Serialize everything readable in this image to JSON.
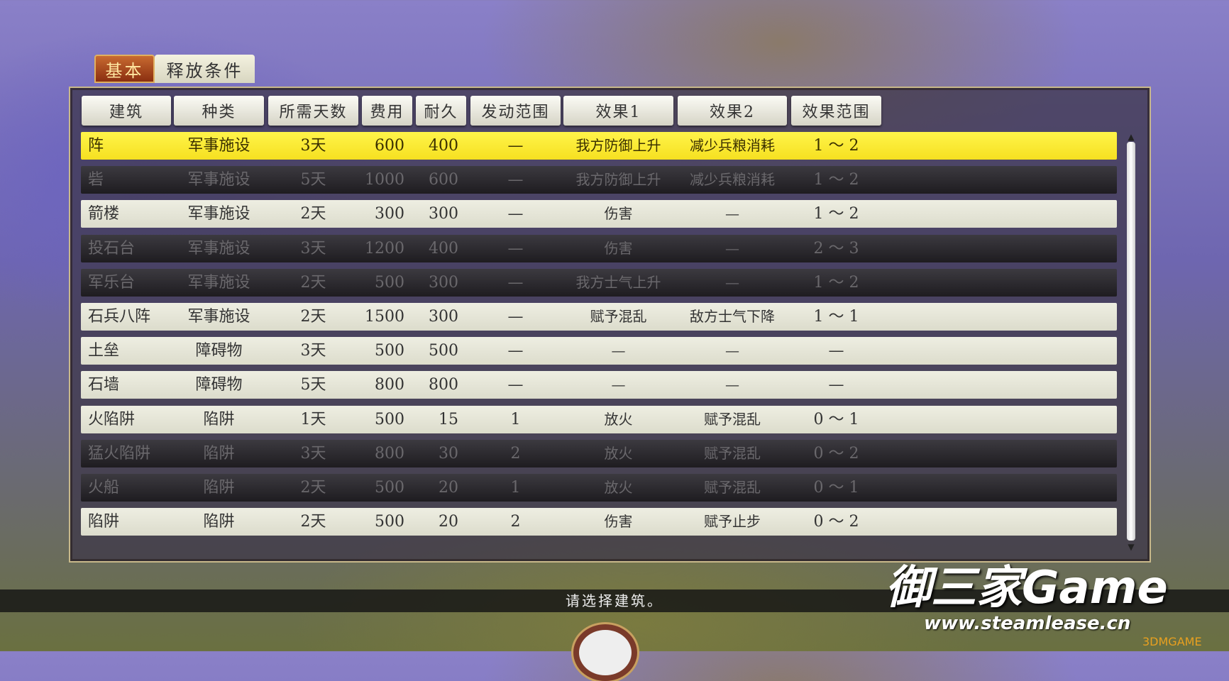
{
  "tabs": [
    {
      "label": "基本",
      "active": true
    },
    {
      "label": "释放条件",
      "active": false
    }
  ],
  "columns": [
    "建筑",
    "种类",
    "所需天数",
    "费用",
    "耐久",
    "发动范围",
    "效果1",
    "效果2",
    "效果范围"
  ],
  "rows": [
    {
      "state": "selected",
      "cells": [
        "阵",
        "军事施设",
        "3天",
        "600",
        "400",
        "—",
        "我方防御上升",
        "减少兵粮消耗",
        "1 ～ 2"
      ]
    },
    {
      "state": "disabled",
      "cells": [
        "砦",
        "军事施设",
        "5天",
        "1000",
        "600",
        "—",
        "我方防御上升",
        "减少兵粮消耗",
        "1 ～ 2"
      ]
    },
    {
      "state": "normal",
      "cells": [
        "箭楼",
        "军事施设",
        "2天",
        "300",
        "300",
        "—",
        "伤害",
        "—",
        "1 ～ 2"
      ]
    },
    {
      "state": "disabled",
      "cells": [
        "投石台",
        "军事施设",
        "3天",
        "1200",
        "400",
        "—",
        "伤害",
        "—",
        "2 ～ 3"
      ]
    },
    {
      "state": "disabled",
      "cells": [
        "军乐台",
        "军事施设",
        "2天",
        "500",
        "300",
        "—",
        "我方士气上升",
        "—",
        "1 ～ 2"
      ]
    },
    {
      "state": "normal",
      "cells": [
        "石兵八阵",
        "军事施设",
        "2天",
        "1500",
        "300",
        "—",
        "赋予混乱",
        "敌方士气下降",
        "1 ～ 1"
      ]
    },
    {
      "state": "normal",
      "cells": [
        "土垒",
        "障碍物",
        "3天",
        "500",
        "500",
        "—",
        "—",
        "—",
        "—"
      ]
    },
    {
      "state": "normal",
      "cells": [
        "石墙",
        "障碍物",
        "5天",
        "800",
        "800",
        "—",
        "—",
        "—",
        "—"
      ]
    },
    {
      "state": "normal",
      "cells": [
        "火陷阱",
        "陷阱",
        "1天",
        "500",
        "15",
        "1",
        "放火",
        "赋予混乱",
        "0 ～ 1"
      ]
    },
    {
      "state": "disabled",
      "cells": [
        "猛火陷阱",
        "陷阱",
        "3天",
        "800",
        "30",
        "2",
        "放火",
        "赋予混乱",
        "0 ～ 2"
      ]
    },
    {
      "state": "disabled",
      "cells": [
        "火船",
        "陷阱",
        "2天",
        "500",
        "20",
        "1",
        "放火",
        "赋予混乱",
        "0 ～ 1"
      ]
    },
    {
      "state": "normal",
      "cells": [
        "陷阱",
        "陷阱",
        "2天",
        "500",
        "20",
        "2",
        "伤害",
        "赋予止步",
        "0 ～ 2"
      ]
    }
  ],
  "status_message": "请选择建筑。",
  "watermark": {
    "title": "御三家Game",
    "url": "www.steamlease.cn",
    "badge": "3DMGAME"
  },
  "colors": {
    "selected_row": "#f8e62a",
    "normal_row": "#e6e6d8",
    "disabled_row": "#2a282e",
    "active_tab": "#a8461e"
  }
}
